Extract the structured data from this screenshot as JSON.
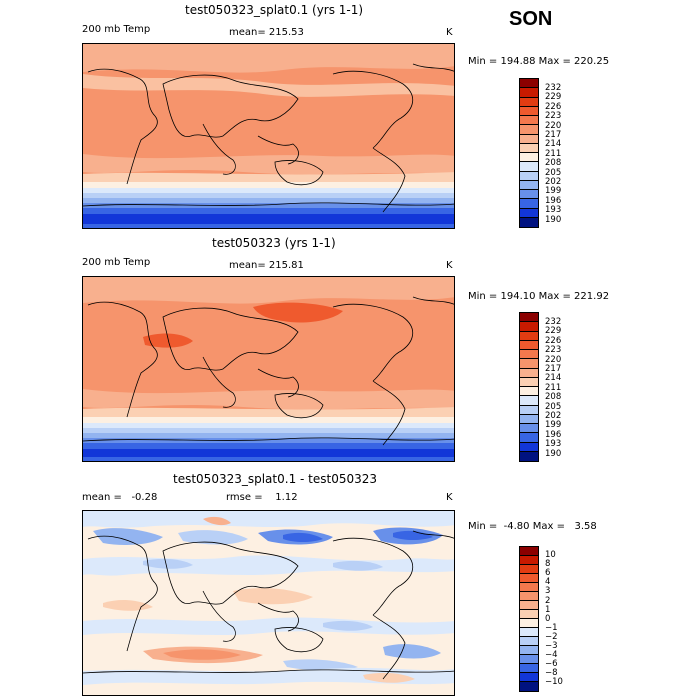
{
  "season": "SON",
  "panels": [
    {
      "title": "test050323_splat0.1 (yrs 1-1)",
      "left_label": "200 mb Temp",
      "center_label": "mean= 215.53",
      "units": "K",
      "minmax": "Min = 194.88 Max = 220.25",
      "colorbar": {
        "labels": [
          "232",
          "229",
          "226",
          "223",
          "220",
          "217",
          "214",
          "211",
          "208",
          "205",
          "202",
          "199",
          "196",
          "193",
          "190"
        ],
        "colors": [
          "#8b0000",
          "#c81a00",
          "#e23c12",
          "#ef5a2e",
          "#f4784d",
          "#f6946c",
          "#f8b08e",
          "#fbd0b3",
          "#fdf0e2",
          "#dce9fb",
          "#b9d0f6",
          "#93b4f0",
          "#6890ea",
          "#3865e4",
          "#1236d8",
          "#001280"
        ]
      },
      "regions": [
        "warm-tropics",
        "polar-jet-band",
        "southern-cold-band"
      ]
    },
    {
      "title": "test050323 (yrs 1-1)",
      "left_label": "200 mb Temp",
      "center_label": "mean= 215.81",
      "units": "K",
      "minmax": "Min = 194.10 Max = 221.92",
      "colorbar": {
        "labels": [
          "232",
          "229",
          "226",
          "223",
          "220",
          "217",
          "214",
          "211",
          "208",
          "205",
          "202",
          "199",
          "196",
          "193",
          "190"
        ],
        "colors": [
          "#8b0000",
          "#c81a00",
          "#e23c12",
          "#ef5a2e",
          "#f4784d",
          "#f6946c",
          "#f8b08e",
          "#fbd0b3",
          "#fdf0e2",
          "#dce9fb",
          "#b9d0f6",
          "#93b4f0",
          "#6890ea",
          "#3865e4",
          "#1236d8",
          "#001280"
        ]
      },
      "regions": [
        "warm-tropics",
        "polar-jet-band",
        "southern-cold-band"
      ]
    },
    {
      "title": "test050323_splat0.1 - test050323",
      "left_label": "mean =   -0.28",
      "center_label": "rmse =    1.12",
      "units": "K",
      "minmax": "Min =  -4.80 Max =   3.58",
      "colorbar": {
        "labels": [
          "10",
          "8",
          "6",
          "4",
          "3",
          "2",
          "1",
          "0",
          "−1",
          "−2",
          "−3",
          "−4",
          "−6",
          "−8",
          "−10"
        ],
        "colors": [
          "#8b0000",
          "#c81a00",
          "#e23c12",
          "#ef5a2e",
          "#f4784d",
          "#f6946c",
          "#f8b08e",
          "#fbd0b3",
          "#fdf0e2",
          "#dce9fb",
          "#b9d0f6",
          "#93b4f0",
          "#6890ea",
          "#3865e4",
          "#1236d8",
          "#001280"
        ]
      },
      "regions": [
        "difference-field"
      ]
    }
  ]
}
